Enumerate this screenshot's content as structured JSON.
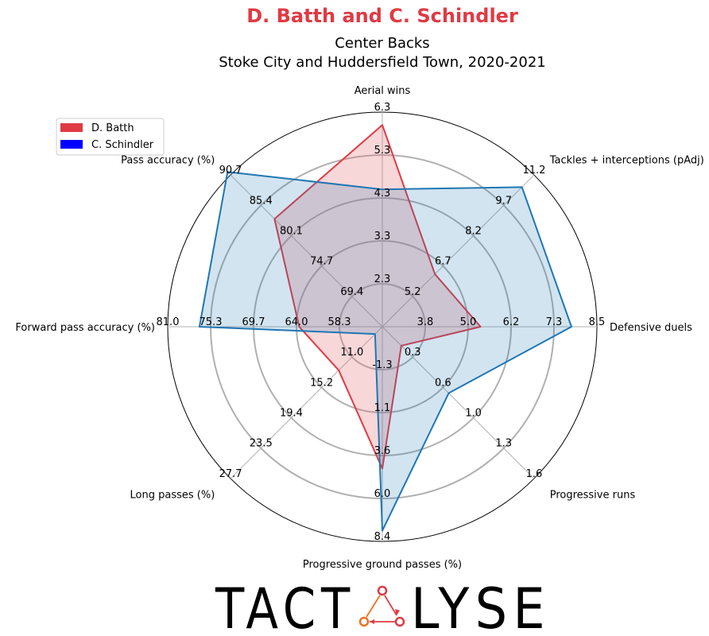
{
  "chart_data": {
    "type": "radar",
    "title": "D. Batth and C. Schindler",
    "subtitle_line1": "Center Backs",
    "subtitle_line2": "Stoke City and Huddersfield Town, 2020-2021",
    "title_color": "#e03a44",
    "legend": {
      "placement": "top-left",
      "entries": [
        {
          "label": "D. Batth",
          "color": "#e03a44"
        },
        {
          "label": "C. Schindler",
          "color": "#0000ff"
        }
      ]
    },
    "axes": [
      {
        "label": "Aerial wins",
        "ticks": [
          "2.3",
          "3.3",
          "4.3",
          "5.3",
          "6.3"
        ],
        "min": 1.3,
        "max": 6.3
      },
      {
        "label": "Tackles + interceptions (pAdj)",
        "ticks": [
          "5.2",
          "6.7",
          "8.2",
          "9.7",
          "11.2"
        ],
        "min": 3.7,
        "max": 11.2
      },
      {
        "label": "Defensive duels",
        "ticks": [
          "3.8",
          "5.0",
          "6.2",
          "7.3",
          "8.5"
        ],
        "min": 2.6,
        "max": 8.5
      },
      {
        "label": "Progressive runs",
        "ticks": [
          "0.3",
          "0.6",
          "1.0",
          "1.3",
          "1.6"
        ],
        "min": 0.0,
        "max": 1.6
      },
      {
        "label": "Progressive ground passes (%)",
        "ticks": [
          "-1.3",
          "1.1",
          "3.6",
          "6.0",
          "8.4"
        ],
        "min": -3.7,
        "max": 8.4
      },
      {
        "label": "Long passes (%)",
        "ticks": [
          "11.0",
          "15.2",
          "19.4",
          "23.5",
          "27.7"
        ],
        "min": 6.8,
        "max": 27.7
      },
      {
        "label": "Forward pass accuracy (%)",
        "ticks": [
          "58.3",
          "64.0",
          "69.7",
          "75.3",
          "81.0"
        ],
        "min": 52.6,
        "max": 81.0
      },
      {
        "label": "Pass accuracy (%)",
        "ticks": [
          "69.4",
          "74.7",
          "80.1",
          "85.4",
          "90.7"
        ],
        "min": 64.1,
        "max": 90.7
      }
    ],
    "series": [
      {
        "name": "D. Batth",
        "color": "#e03a44",
        "fill": "rgba(230,110,120,0.28)",
        "values": [
          6.0,
          6.3,
          5.3,
          0.2,
          4.3,
          12.8,
          63.6,
          83.0
        ]
      },
      {
        "name": "C. Schindler",
        "color": "#1f77b4",
        "fill": "rgba(31,119,180,0.20)",
        "values": [
          4.5,
          10.6,
          7.8,
          0.7,
          7.8,
          7.8,
          76.8,
          92.1
        ]
      }
    ],
    "grid": true
  },
  "branding": {
    "logo_text": "TACTALYSE",
    "logo_left": "TACT",
    "logo_right": "LYSE"
  }
}
